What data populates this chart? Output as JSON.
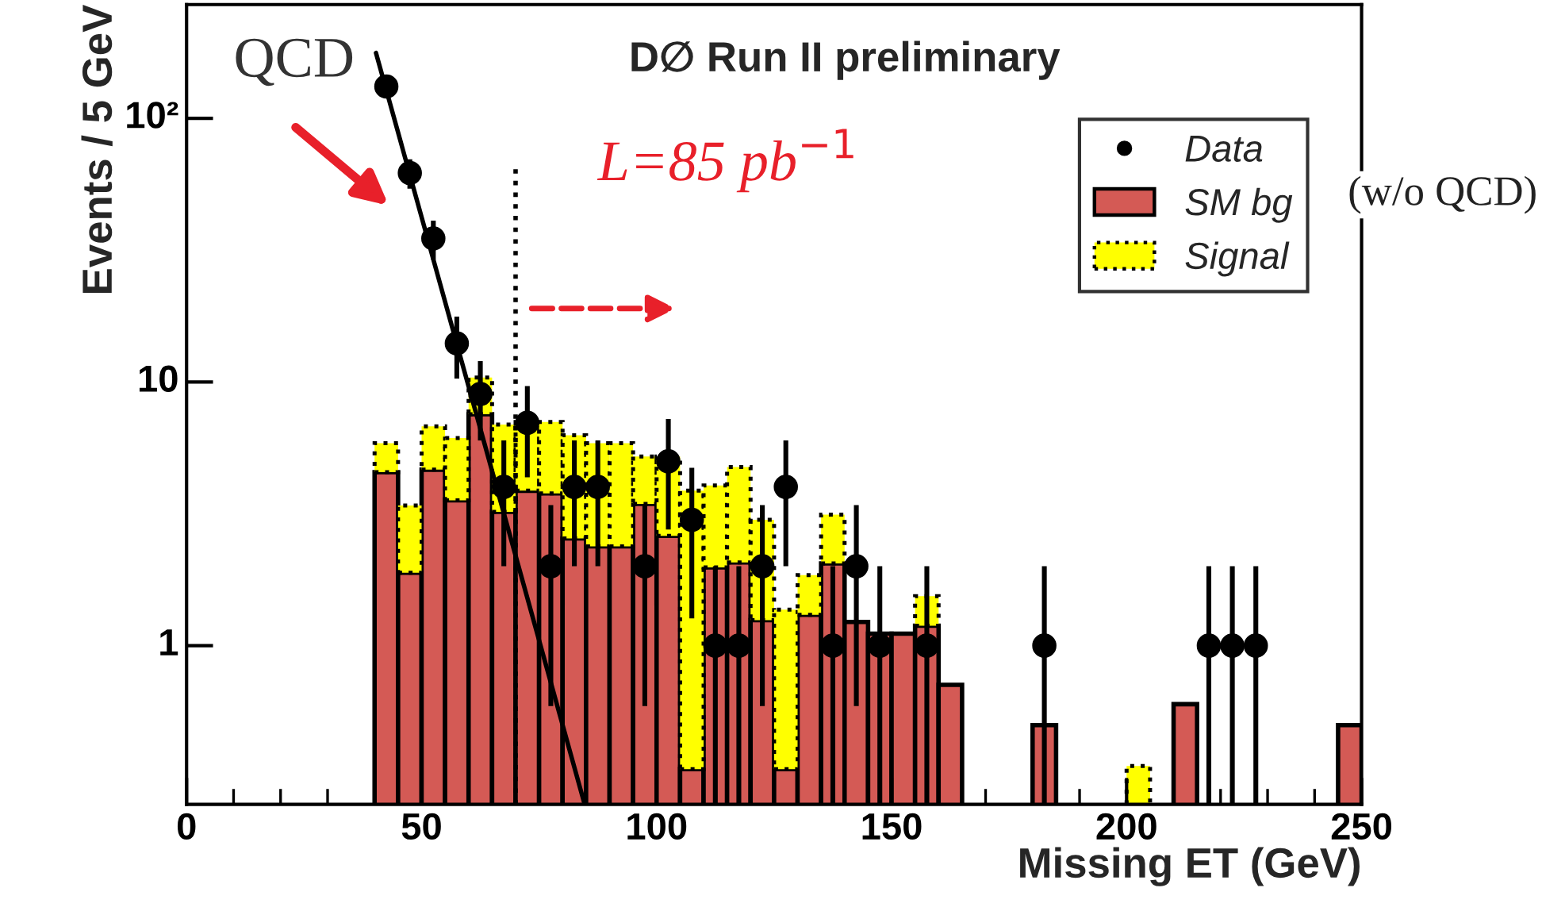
{
  "chart_data": {
    "type": "bar",
    "title": "D∅ Run II preliminary",
    "xlabel": "Missing ET (GeV)",
    "ylabel": "Events / 5 GeV",
    "x": [
      42.5,
      47.5,
      52.5,
      57.5,
      62.5,
      67.5,
      72.5,
      77.5,
      82.5,
      87.5,
      92.5,
      97.5,
      102.5,
      107.5,
      112.5,
      117.5,
      122.5,
      127.5,
      132.5,
      137.5,
      142.5,
      147.5,
      152.5,
      157.5,
      162.5,
      167.5,
      172.5,
      177.5,
      182.5,
      187.5,
      192.5,
      197.5,
      202.5,
      207.5,
      212.5,
      217.5,
      222.5,
      227.5,
      232.5,
      237.5,
      242.5,
      247.5
    ],
    "stacked": true,
    "series": [
      {
        "name": "Data",
        "type": "scatter",
        "color": "#000000",
        "marker": "circle",
        "x": [
          42.5,
          47.5,
          52.5,
          57.5,
          62.5,
          67.5,
          72.5,
          77.5,
          82.5,
          87.5,
          97.5,
          102.5,
          107.5,
          112.5,
          117.5,
          122.5,
          127.5,
          137.5,
          142.5,
          147.5,
          157.5,
          182.5,
          217.5,
          222.5,
          227.5
        ],
        "values": [
          132,
          62,
          35,
          14,
          9,
          4,
          7,
          2,
          4,
          4,
          2,
          5,
          3,
          1,
          1,
          2,
          4,
          1,
          2,
          1,
          1,
          1,
          1,
          1,
          1
        ],
        "errors": [
          [
            120.5,
            143.5
          ],
          [
            54.1,
            69.9
          ],
          [
            29.1,
            40.9
          ],
          [
            10.3,
            17.7
          ],
          [
            6,
            12
          ],
          [
            2,
            6
          ],
          [
            4.35,
            9.65
          ],
          [
            0.59,
            3.41
          ],
          [
            2,
            6
          ],
          [
            2,
            6
          ],
          [
            0.59,
            3.41
          ],
          [
            2.76,
            7.24
          ],
          [
            1.27,
            4.73
          ],
          [
            0.25,
            2
          ],
          [
            0.25,
            2
          ],
          [
            0.59,
            3.41
          ],
          [
            2,
            6
          ],
          [
            0.25,
            2
          ],
          [
            0.59,
            3.41
          ],
          [
            0.25,
            2
          ],
          [
            0.25,
            2
          ],
          [
            0.25,
            2
          ],
          [
            0.25,
            2
          ],
          [
            0.25,
            2
          ],
          [
            0.25,
            2
          ]
        ]
      },
      {
        "name": "SM bg",
        "type": "bar",
        "color": "#d45a55",
        "values": [
          4.55,
          1.89,
          4.65,
          3.56,
          7.55,
          3.22,
          3.87,
          3.78,
          2.55,
          2.38,
          2.38,
          3.45,
          2.61,
          0.34,
          1.98,
          2.07,
          1.25,
          0.34,
          1.31,
          2.05,
          1.23,
          1.11,
          1.11,
          1.19,
          0.71,
          null,
          null,
          null,
          0.5,
          null,
          null,
          null,
          null,
          null,
          0.6,
          null,
          null,
          null,
          null,
          null,
          null,
          0.5
        ]
      },
      {
        "name": "Signal",
        "type": "bar",
        "color": "#ffff00",
        "values": [
          1.31,
          1.51,
          2.14,
          2.57,
          2.85,
          3.67,
          3.18,
          3.27,
          3.73,
          3.48,
          3.48,
          1.77,
          2.61,
          3.53,
          2.07,
          2.69,
          1.75,
          1.03,
          0.54,
          1.09,
          null,
          null,
          null,
          0.35,
          null,
          null,
          null,
          null,
          null,
          null,
          null,
          null,
          0.35,
          null,
          null,
          null,
          null,
          null,
          null,
          null,
          null,
          null
        ]
      },
      {
        "type": "line",
        "color": "#000000",
        "x": [
          40.3,
          84.7
        ],
        "values": [
          177,
          0.25
        ]
      }
    ],
    "log": true,
    "xlim": [
      0,
      250
    ],
    "ylim": [
      0.25,
      270
    ],
    "xticks": [
      0,
      50,
      100,
      150,
      200,
      250
    ],
    "yticks": [
      1,
      10,
      {
        "value": 100,
        "label": "10²"
      }
    ],
    "ref_lines": [
      {
        "axis": "x",
        "value": 70,
        "line_style": "dotted",
        "color": "#000000"
      }
    ],
    "annotations": [
      "QCD",
      "L=85 pb$^{−1}$",
      "(w/o QCD)"
    ],
    "legend": "top right",
    "grid": false
  }
}
